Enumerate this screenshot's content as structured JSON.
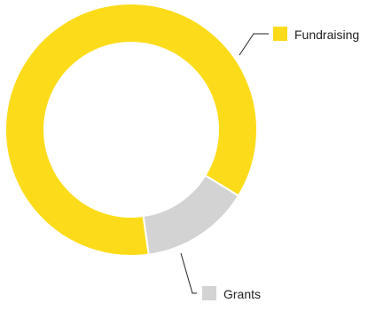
{
  "chart_data": {
    "type": "pie",
    "variant": "donut",
    "title": "",
    "slices": [
      {
        "label": "Fundraising",
        "value": 86,
        "color": "#FCDC1A"
      },
      {
        "label": "Grants",
        "value": 14,
        "color": "#D3D3D3"
      }
    ],
    "legend_placement": "callout-labels"
  }
}
